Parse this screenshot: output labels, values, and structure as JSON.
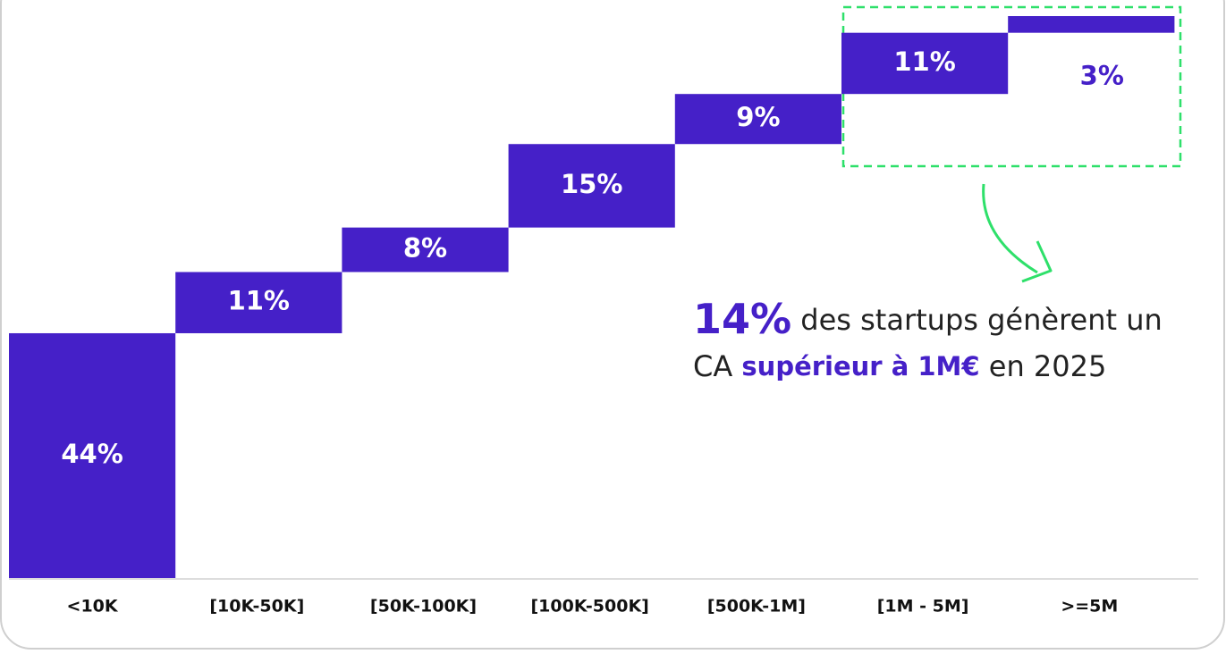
{
  "chart_data": {
    "type": "waterfall",
    "categories": [
      "<10K",
      "[10K-50K]",
      "[50K-100K]",
      "[100K-500K]",
      "[500K-1M]",
      "[1M - 5M]",
      ">=5M"
    ],
    "values": [
      44,
      11,
      8,
      15,
      9,
      11,
      3
    ],
    "value_labels": [
      "44%",
      "11%",
      "8%",
      "15%",
      "9%",
      "11%",
      "3%"
    ],
    "color": "#4520c8",
    "annotation": {
      "highlight": "14%",
      "line1": "des startups génèrent un",
      "prefix": "CA",
      "emphasis": "supérieur à 1M€",
      "suffix": "en 2025"
    }
  }
}
